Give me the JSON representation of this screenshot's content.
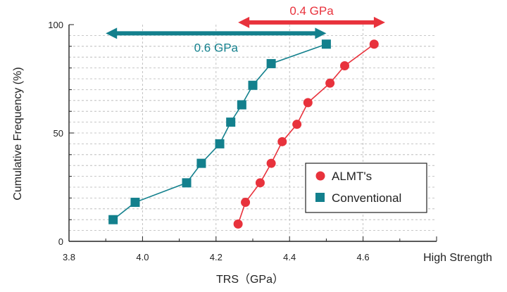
{
  "chart_data": {
    "type": "scatter",
    "xlabel": "TRS（GPa）",
    "ylabel": "Cumulative Frequency (%)",
    "x_extra_label": "High Strength",
    "xlim": [
      3.8,
      4.8
    ],
    "ylim": [
      0,
      100
    ],
    "xticks": [
      "3.8",
      "4.0",
      "4.2",
      "4.4",
      "4.6"
    ],
    "xtick_values": [
      3.8,
      4.0,
      4.2,
      4.4,
      4.6
    ],
    "yticks": [
      "0",
      "50",
      "100"
    ],
    "ytick_values": [
      0,
      50,
      100
    ],
    "grid": "dashed horizontal every 5%, dashed vertical every 0.2 GPa",
    "legend_position": "bottom-right",
    "series": [
      {
        "name": "ALMT's",
        "marker": "circle",
        "color": "#e8323c",
        "x": [
          4.26,
          4.28,
          4.32,
          4.35,
          4.38,
          4.42,
          4.45,
          4.51,
          4.55,
          4.63
        ],
        "y": [
          8,
          18,
          27,
          36,
          46,
          54,
          64,
          73,
          81,
          91
        ]
      },
      {
        "name": "Conventional",
        "marker": "square",
        "color": "#13808d",
        "x": [
          3.92,
          3.98,
          4.12,
          4.16,
          4.21,
          4.24,
          4.27,
          4.3,
          4.35,
          4.5
        ],
        "y": [
          10,
          18,
          27,
          36,
          45,
          55,
          63,
          72,
          82,
          91
        ]
      }
    ],
    "annotations": [
      {
        "text": "0.4 GPa",
        "color": "#e8323c",
        "from_x": 4.26,
        "to_x": 4.66,
        "y": 101
      },
      {
        "text": "0.6 GPa",
        "color": "#13808d",
        "from_x": 3.9,
        "to_x": 4.5,
        "y": 96
      }
    ]
  }
}
